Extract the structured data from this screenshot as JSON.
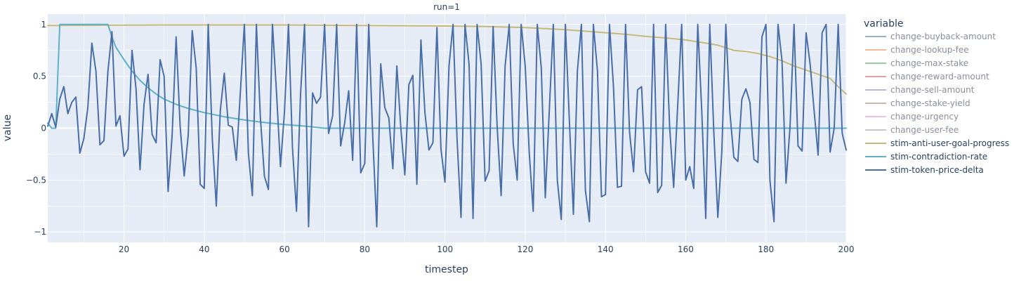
{
  "chart_data": {
    "type": "line",
    "title": "run=1",
    "xlabel": "timestep",
    "ylabel": "value",
    "xlim": [
      1,
      200
    ],
    "ylim": [
      -1.1,
      1.1
    ],
    "xticks": [
      20,
      40,
      60,
      80,
      100,
      120,
      140,
      160,
      180,
      200
    ],
    "yticks": [
      -1,
      -0.5,
      0,
      0.5,
      1
    ],
    "ytick_labels": [
      "−1",
      "−0.5",
      "0",
      "0.5",
      "1"
    ],
    "grid": true,
    "legend": {
      "title": "variable",
      "position": "right"
    },
    "series": [
      {
        "name": "change-buyback-amount",
        "color": "#8fb0d0",
        "muted": true,
        "values": []
      },
      {
        "name": "change-lookup-fee",
        "color": "#f0b89a",
        "muted": true,
        "values": []
      },
      {
        "name": "change-max-stake",
        "color": "#93d0a0",
        "muted": true,
        "values": []
      },
      {
        "name": "change-reward-amount",
        "color": "#e0a0a8",
        "muted": true,
        "values": []
      },
      {
        "name": "change-sell-amount",
        "color": "#c0b4dc",
        "muted": true,
        "values": []
      },
      {
        "name": "change-stake-yield",
        "color": "#c8b8a8",
        "muted": true,
        "values": []
      },
      {
        "name": "change-urgency",
        "color": "#f0c0e0",
        "muted": true,
        "values": []
      },
      {
        "name": "change-user-fee",
        "color": "#c8c8c8",
        "muted": true,
        "values": []
      },
      {
        "name": "stim-anti-user-goal-progress",
        "color": "#c8b87a",
        "muted": false,
        "values": [
          [
            1,
            0.99
          ],
          [
            30,
            0.995
          ],
          [
            60,
            0.995
          ],
          [
            80,
            0.99
          ],
          [
            100,
            0.985
          ],
          [
            110,
            0.98
          ],
          [
            120,
            0.97
          ],
          [
            125,
            0.96
          ],
          [
            130,
            0.95
          ],
          [
            135,
            0.935
          ],
          [
            140,
            0.92
          ],
          [
            145,
            0.905
          ],
          [
            150,
            0.885
          ],
          [
            155,
            0.87
          ],
          [
            160,
            0.85
          ],
          [
            165,
            0.82
          ],
          [
            168,
            0.8
          ],
          [
            172,
            0.75
          ],
          [
            175,
            0.74
          ],
          [
            178,
            0.72
          ],
          [
            181,
            0.69
          ],
          [
            184,
            0.65
          ],
          [
            187,
            0.6
          ],
          [
            190,
            0.56
          ],
          [
            193,
            0.52
          ],
          [
            196,
            0.48
          ],
          [
            198,
            0.4
          ],
          [
            200,
            0.33
          ]
        ]
      },
      {
        "name": "stim-contradiction-rate",
        "color": "#5fb0c8",
        "muted": false,
        "values": [
          [
            1,
            0.05
          ],
          [
            2,
            0
          ],
          [
            3,
            0
          ],
          [
            4,
            1
          ],
          [
            10,
            1
          ],
          [
            16,
            1
          ],
          [
            17,
            0.88
          ],
          [
            18,
            0.78
          ],
          [
            20,
            0.66
          ],
          [
            22,
            0.55
          ],
          [
            24,
            0.46
          ],
          [
            26,
            0.39
          ],
          [
            28,
            0.33
          ],
          [
            30,
            0.28
          ],
          [
            33,
            0.23
          ],
          [
            36,
            0.19
          ],
          [
            40,
            0.15
          ],
          [
            45,
            0.11
          ],
          [
            50,
            0.08
          ],
          [
            55,
            0.055
          ],
          [
            60,
            0.035
          ],
          [
            65,
            0.02
          ],
          [
            70,
            0
          ],
          [
            200,
            0
          ]
        ]
      },
      {
        "name": "stim-token-price-delta",
        "color": "#4a6ea8",
        "muted": false,
        "values": [
          [
            1,
            0.02
          ],
          [
            2,
            0.14
          ],
          [
            3,
            0.01
          ],
          [
            4,
            0.28
          ],
          [
            5,
            0.4
          ],
          [
            6,
            0.14
          ],
          [
            7,
            0.25
          ],
          [
            8,
            0.3
          ],
          [
            9,
            -0.24
          ],
          [
            10,
            -0.1
          ],
          [
            11,
            0.2
          ],
          [
            12,
            0.82
          ],
          [
            13,
            0.55
          ],
          [
            14,
            -0.16
          ],
          [
            15,
            -0.12
          ],
          [
            16,
            0.55
          ],
          [
            17,
            0.93
          ],
          [
            18,
            0.02
          ],
          [
            19,
            0.12
          ],
          [
            20,
            -0.27
          ],
          [
            21,
            -0.2
          ],
          [
            22,
            0.75
          ],
          [
            23,
            0.38
          ],
          [
            24,
            -0.4
          ],
          [
            25,
            0.23
          ],
          [
            26,
            0.52
          ],
          [
            27,
            -0.06
          ],
          [
            28,
            -0.14
          ],
          [
            29,
            0.66
          ],
          [
            30,
            0.5
          ],
          [
            31,
            -0.61
          ],
          [
            32,
            -0.07
          ],
          [
            33,
            0.88
          ],
          [
            34,
            0.02
          ],
          [
            35,
            -0.46
          ],
          [
            36,
            -0.07
          ],
          [
            37,
            0.94
          ],
          [
            38,
            0.58
          ],
          [
            39,
            -0.54
          ],
          [
            40,
            -0.58
          ],
          [
            41,
            1.0
          ],
          [
            42,
            -0.1
          ],
          [
            43,
            -0.75
          ],
          [
            44,
            0.17
          ],
          [
            45,
            0.53
          ],
          [
            46,
            0.03
          ],
          [
            47,
            0.01
          ],
          [
            48,
            -0.31
          ],
          [
            49,
            0.35
          ],
          [
            50,
            1.0
          ],
          [
            51,
            -0.24
          ],
          [
            52,
            -0.65
          ],
          [
            53,
            1.0
          ],
          [
            54,
            0.1
          ],
          [
            55,
            -0.46
          ],
          [
            56,
            -0.59
          ],
          [
            57,
            1.0
          ],
          [
            58,
            0.35
          ],
          [
            59,
            -0.37
          ],
          [
            60,
            0.16
          ],
          [
            61,
            1.0
          ],
          [
            62,
            -0.19
          ],
          [
            63,
            -0.8
          ],
          [
            64,
            0.33
          ],
          [
            65,
            1.0
          ],
          [
            66,
            -0.95
          ],
          [
            67,
            0.34
          ],
          [
            68,
            0.24
          ],
          [
            69,
            0.3
          ],
          [
            70,
            1.0
          ],
          [
            71,
            -0.05
          ],
          [
            72,
            0.12
          ],
          [
            73,
            1.0
          ],
          [
            74,
            -0.17
          ],
          [
            75,
            0.05
          ],
          [
            76,
            0.36
          ],
          [
            77,
            -0.31
          ],
          [
            78,
            1.0
          ],
          [
            79,
            -0.43
          ],
          [
            80,
            -0.34
          ],
          [
            81,
            1.0
          ],
          [
            82,
            -0.08
          ],
          [
            83,
            -0.95
          ],
          [
            84,
            0.62
          ],
          [
            85,
            0.2
          ],
          [
            86,
            0.1
          ],
          [
            87,
            -0.39
          ],
          [
            88,
            0.6
          ],
          [
            89,
            0.0
          ],
          [
            90,
            -0.45
          ],
          [
            91,
            0.42
          ],
          [
            92,
            0.51
          ],
          [
            93,
            -0.54
          ],
          [
            94,
            0.85
          ],
          [
            95,
            0.15
          ],
          [
            96,
            -0.21
          ],
          [
            97,
            -0.14
          ],
          [
            98,
            0.97
          ],
          [
            99,
            -0.2
          ],
          [
            100,
            -0.52
          ],
          [
            101,
            0.6
          ],
          [
            102,
            1.0
          ],
          [
            103,
            -0.1
          ],
          [
            104,
            -0.86
          ],
          [
            105,
            1.0
          ],
          [
            106,
            0.62
          ],
          [
            107,
            -0.87
          ],
          [
            108,
            1.0
          ],
          [
            109,
            0.62
          ],
          [
            110,
            -0.51
          ],
          [
            111,
            -0.41
          ],
          [
            112,
            0.98
          ],
          [
            113,
            0.02
          ],
          [
            114,
            -0.65
          ],
          [
            115,
            0.6
          ],
          [
            116,
            1.0
          ],
          [
            117,
            -0.15
          ],
          [
            118,
            -0.5
          ],
          [
            119,
            1.0
          ],
          [
            120,
            0.6
          ],
          [
            121,
            -0.23
          ],
          [
            122,
            -0.8
          ],
          [
            123,
            1.0
          ],
          [
            124,
            0.58
          ],
          [
            125,
            -0.67
          ],
          [
            126,
            0.17
          ],
          [
            127,
            1.0
          ],
          [
            128,
            -0.5
          ],
          [
            129,
            -0.88
          ],
          [
            130,
            1.0
          ],
          [
            131,
            0.07
          ],
          [
            132,
            -0.83
          ],
          [
            133,
            0.55
          ],
          [
            134,
            1.0
          ],
          [
            135,
            -0.6
          ],
          [
            136,
            -0.9
          ],
          [
            137,
            1.0
          ],
          [
            138,
            0.55
          ],
          [
            139,
            -0.66
          ],
          [
            140,
            -0.64
          ],
          [
            141,
            1.0
          ],
          [
            142,
            0.4
          ],
          [
            143,
            -0.57
          ],
          [
            144,
            -0.56
          ],
          [
            145,
            1.0
          ],
          [
            146,
            -0.04
          ],
          [
            147,
            -0.42
          ],
          [
            148,
            0.37
          ],
          [
            149,
            0.4
          ],
          [
            150,
            -0.42
          ],
          [
            151,
            -0.53
          ],
          [
            152,
            1.0
          ],
          [
            153,
            -0.62
          ],
          [
            154,
            -0.55
          ],
          [
            155,
            1.0
          ],
          [
            156,
            0.01
          ],
          [
            157,
            -0.57
          ],
          [
            158,
            0.21
          ],
          [
            159,
            1.0
          ],
          [
            160,
            -0.5
          ],
          [
            161,
            -0.37
          ],
          [
            162,
            -0.58
          ],
          [
            163,
            1.0
          ],
          [
            164,
            0.17
          ],
          [
            165,
            -0.87
          ],
          [
            166,
            1.0
          ],
          [
            167,
            -0.04
          ],
          [
            168,
            -0.86
          ],
          [
            169,
            -0.22
          ],
          [
            170,
            1.0
          ],
          [
            171,
            0.16
          ],
          [
            172,
            -0.28
          ],
          [
            173,
            -0.32
          ],
          [
            174,
            0.28
          ],
          [
            175,
            0.38
          ],
          [
            176,
            0.25
          ],
          [
            177,
            -0.3
          ],
          [
            178,
            -0.33
          ],
          [
            179,
            0.88
          ],
          [
            180,
            1.0
          ],
          [
            181,
            -0.5
          ],
          [
            182,
            -0.9
          ],
          [
            183,
            1.0
          ],
          [
            184,
            0.65
          ],
          [
            185,
            -0.53
          ],
          [
            186,
            0.01
          ],
          [
            187,
            1.0
          ],
          [
            188,
            -0.17
          ],
          [
            189,
            -0.22
          ],
          [
            190,
            0.92
          ],
          [
            191,
            0.62
          ],
          [
            192,
            0.17
          ],
          [
            193,
            -0.26
          ],
          [
            194,
            0.92
          ],
          [
            195,
            1.0
          ],
          [
            196,
            -0.23
          ],
          [
            197,
            0.0
          ],
          [
            198,
            1.0
          ],
          [
            199,
            -0.05
          ],
          [
            200,
            -0.21
          ]
        ]
      }
    ]
  }
}
